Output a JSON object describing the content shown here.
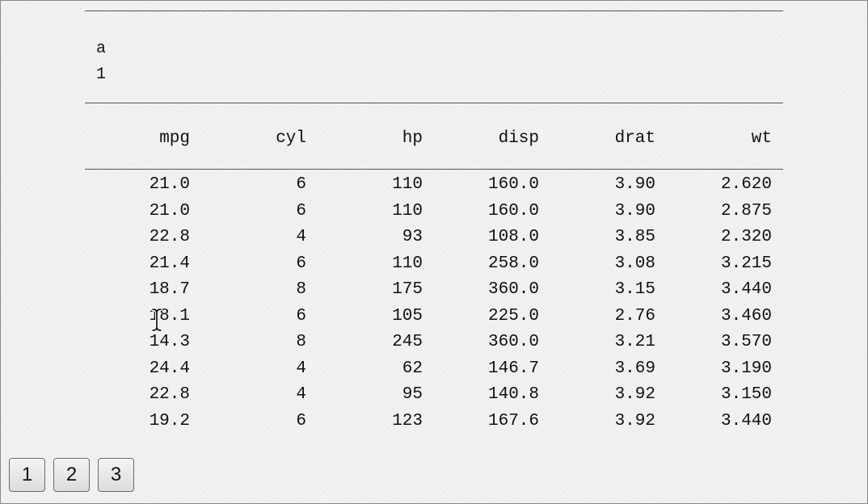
{
  "header": {
    "line1": "a",
    "line2": "1"
  },
  "table": {
    "columns": [
      "mpg",
      "cyl",
      "hp",
      "disp",
      "drat",
      "wt"
    ],
    "rows": [
      [
        "21.0",
        "6",
        "110",
        "160.0",
        "3.90",
        "2.620"
      ],
      [
        "21.0",
        "6",
        "110",
        "160.0",
        "3.90",
        "2.875"
      ],
      [
        "22.8",
        "4",
        "93",
        "108.0",
        "3.85",
        "2.320"
      ],
      [
        "21.4",
        "6",
        "110",
        "258.0",
        "3.08",
        "3.215"
      ],
      [
        "18.7",
        "8",
        "175",
        "360.0",
        "3.15",
        "3.440"
      ],
      [
        "18.1",
        "6",
        "105",
        "225.0",
        "2.76",
        "3.460"
      ],
      [
        "14.3",
        "8",
        "245",
        "360.0",
        "3.21",
        "3.570"
      ],
      [
        "24.4",
        "4",
        "62",
        "146.7",
        "3.69",
        "3.190"
      ],
      [
        "22.8",
        "4",
        "95",
        "140.8",
        "3.92",
        "3.150"
      ],
      [
        "19.2",
        "6",
        "123",
        "167.6",
        "3.92",
        "3.440"
      ]
    ]
  },
  "pagination": {
    "pages": [
      "1",
      "2",
      "3"
    ]
  },
  "cursor": {
    "icon": "text-cursor-icon"
  }
}
